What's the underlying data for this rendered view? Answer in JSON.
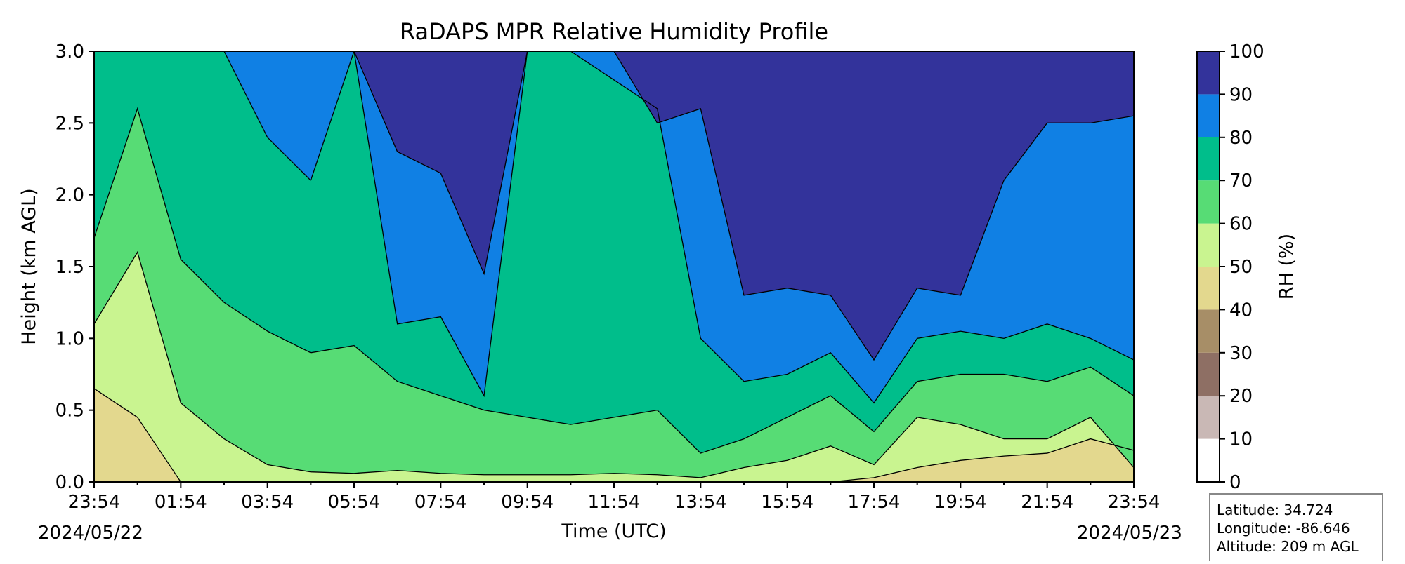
{
  "chart_data": {
    "type": "heatmap",
    "subtype": "filled-contour",
    "title": "RaDAPS MPR Relative Humidity Profile",
    "xlabel": "Time (UTC)",
    "ylabel": "Height (km AGL)",
    "ylim": [
      0,
      3.0
    ],
    "y_ticks": [
      "0.0",
      "0.5",
      "1.0",
      "1.5",
      "2.0",
      "2.5",
      "3.0"
    ],
    "x_ticks": [
      "23:54",
      "01:54",
      "03:54",
      "05:54",
      "07:54",
      "09:54",
      "11:54",
      "13:54",
      "15:54",
      "17:54",
      "19:54",
      "21:54",
      "23:54"
    ],
    "x_start_date": "2024/05/22",
    "x_end_date": "2024/05/23",
    "colorbar": {
      "label": "RH (%)",
      "ticks": [
        "0",
        "10",
        "20",
        "30",
        "40",
        "50",
        "60",
        "70",
        "80",
        "90",
        "100"
      ],
      "levels": [
        0,
        10,
        20,
        30,
        40,
        50,
        60,
        70,
        80,
        90,
        100
      ],
      "colors": [
        "#ffffff",
        "#c9b8b5",
        "#8e6f64",
        "#a78e67",
        "#e3d88e",
        "#c9f490",
        "#57dc75",
        "#00be8b",
        "#1080e4",
        "#33339b"
      ]
    },
    "boundaries": [
      {
        "level": 50,
        "x": [
          0,
          1,
          2,
          3,
          4,
          5,
          6,
          7,
          8,
          9,
          10,
          11,
          12,
          13,
          14,
          15,
          16,
          17,
          18,
          19,
          20,
          21,
          22,
          23,
          24
        ],
        "y": [
          0.65,
          0.45,
          0.0,
          0.0,
          0.0,
          0.0,
          0.0,
          0.0,
          0.0,
          0.0,
          0.0,
          0.0,
          0.0,
          0.0,
          0.0,
          0.0,
          0.0,
          0.0,
          0.03,
          0.1,
          0.15,
          0.18,
          0.2,
          0.3,
          0.22
        ]
      },
      {
        "level": 60,
        "x": [
          0,
          1,
          2,
          3,
          4,
          5,
          6,
          7,
          8,
          9,
          10,
          11,
          12,
          13,
          14,
          15,
          16,
          17,
          18,
          19,
          20,
          21,
          22,
          23,
          24
        ],
        "y": [
          1.1,
          1.6,
          0.55,
          0.3,
          0.12,
          0.07,
          0.06,
          0.08,
          0.06,
          0.05,
          0.05,
          0.05,
          0.06,
          0.05,
          0.03,
          0.1,
          0.15,
          0.25,
          0.12,
          0.45,
          0.4,
          0.3,
          0.3,
          0.45,
          0.1
        ]
      },
      {
        "level": 70,
        "x": [
          0,
          1,
          2,
          3,
          4,
          5,
          6,
          7,
          8,
          9,
          10,
          11,
          12,
          13,
          14,
          15,
          16,
          17,
          18,
          19,
          20,
          21,
          22,
          23,
          24
        ],
        "y": [
          1.7,
          2.6,
          1.55,
          1.25,
          1.05,
          0.9,
          0.95,
          0.7,
          0.6,
          0.5,
          0.45,
          0.4,
          0.45,
          0.5,
          0.2,
          0.3,
          0.45,
          0.6,
          0.35,
          0.7,
          0.75,
          0.75,
          0.7,
          0.8,
          0.6
        ]
      },
      {
        "level": 80,
        "x": [
          0,
          1,
          2,
          3,
          4,
          5,
          6,
          7,
          8,
          9,
          10,
          11,
          12,
          13,
          14,
          15,
          16,
          17,
          18,
          19,
          20,
          21,
          22,
          23,
          24
        ],
        "y": [
          3.0,
          3.0,
          3.0,
          3.0,
          2.4,
          2.1,
          3.0,
          1.1,
          1.15,
          0.6,
          3.0,
          3.0,
          2.8,
          2.6,
          1.0,
          0.7,
          0.75,
          0.9,
          0.55,
          1.0,
          1.05,
          1.0,
          1.1,
          1.0,
          0.85
        ]
      },
      {
        "level": 90,
        "x": [
          0,
          1,
          2,
          3,
          4,
          5,
          6,
          7,
          8,
          9,
          10,
          11,
          12,
          13,
          14,
          15,
          16,
          17,
          18,
          19,
          20,
          21,
          22,
          23,
          24
        ],
        "y": [
          3.0,
          3.0,
          3.0,
          3.0,
          3.0,
          3.0,
          3.0,
          2.3,
          2.15,
          1.45,
          3.0,
          3.0,
          3.0,
          2.5,
          2.6,
          1.3,
          1.35,
          1.3,
          0.85,
          1.35,
          1.3,
          2.1,
          2.5,
          2.5,
          2.55
        ]
      }
    ]
  },
  "info_box": {
    "latitude": "Latitude: 34.724",
    "longitude": "Longitude: -86.646",
    "altitude": "Altitude: 209 m AGL"
  }
}
